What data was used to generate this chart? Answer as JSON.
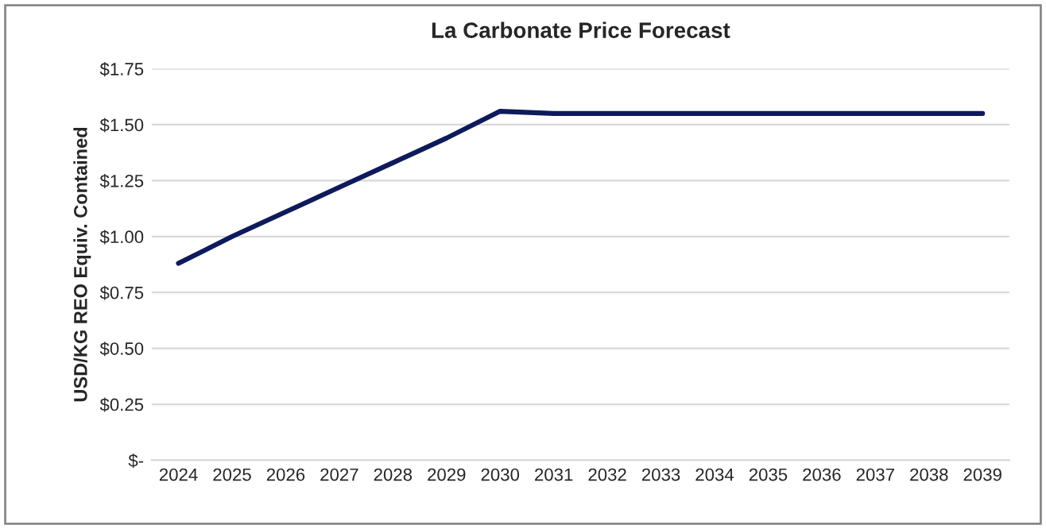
{
  "chart_data": {
    "type": "line",
    "title": "La Carbonate Price Forecast",
    "ylabel": "USD/KG REO Equiv. Contained",
    "categories": [
      "2024",
      "2025",
      "2026",
      "2027",
      "2028",
      "2029",
      "2030",
      "2031",
      "2032",
      "2033",
      "2034",
      "2035",
      "2036",
      "2037",
      "2038",
      "2039"
    ],
    "series": [
      {
        "color": "#0d1a5c",
        "values": [
          0.88,
          1.0,
          1.11,
          1.22,
          1.33,
          1.44,
          1.56,
          1.55,
          1.55,
          1.55,
          1.55,
          1.55,
          1.55,
          1.55,
          1.55,
          1.55
        ]
      }
    ],
    "ylim": [
      0,
      1.75
    ],
    "yticks": [
      {
        "value": 0,
        "label": "$-"
      },
      {
        "value": 0.25,
        "label": "$0.25"
      },
      {
        "value": 0.5,
        "label": "$0.50"
      },
      {
        "value": 0.75,
        "label": "$0.75"
      },
      {
        "value": 1.0,
        "label": "$1.00"
      },
      {
        "value": 1.25,
        "label": "$1.25"
      },
      {
        "value": 1.5,
        "label": "$1.50"
      },
      {
        "value": 1.75,
        "label": "$1.75"
      }
    ],
    "grid": "y",
    "legend": false,
    "marker": "none",
    "line_style": "solid"
  }
}
